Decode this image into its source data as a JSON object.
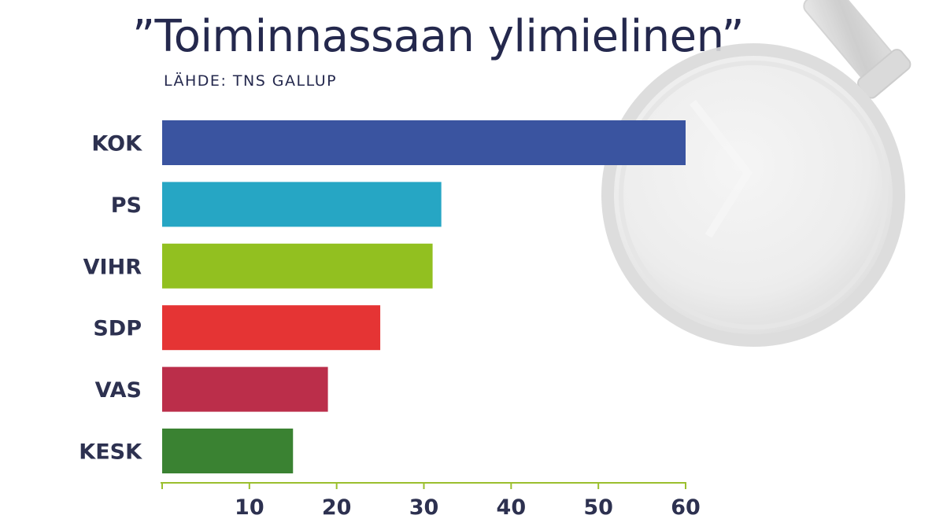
{
  "chart_data": {
    "type": "bar",
    "orientation": "horizontal",
    "title": "”Toiminnassaan ylimielinen”",
    "subtitle": "LÄHDE: TNS GALLUP",
    "categories": [
      "KOK",
      "PS",
      "VIHR",
      "SDP",
      "VAS",
      "KESK"
    ],
    "values": [
      60,
      32,
      31,
      25,
      19,
      15
    ],
    "colors": [
      "#3a54a0",
      "#26a6c4",
      "#92c020",
      "#e53434",
      "#bb2e4a",
      "#3a8232"
    ],
    "xlim": [
      0,
      60
    ],
    "xticks": [
      10,
      20,
      30,
      40,
      50,
      60
    ],
    "grid": false,
    "axis_color": "#9bbf2e",
    "decoration": "magnifying-glass"
  }
}
